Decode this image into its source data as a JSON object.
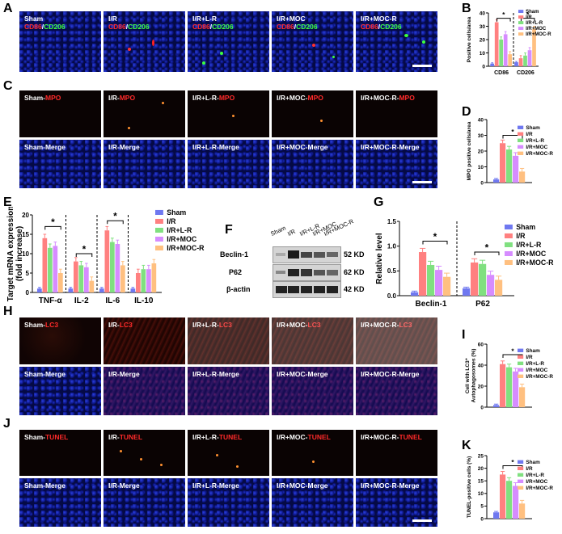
{
  "panels": {
    "A": {
      "letter": "A",
      "tiles": [
        {
          "t1": "Sham",
          "t2": "CD86",
          "t3": "/",
          "t4": "CD206"
        },
        {
          "t1": "I/R",
          "t2": "CD86",
          "t3": "/",
          "t4": "CD206"
        },
        {
          "t1": "I/R+L-R",
          "t2": "CD86",
          "t3": "/",
          "t4": "CD206"
        },
        {
          "t1": "I/R+MOC",
          "t2": "CD86",
          "t3": "/",
          "t4": "CD206"
        },
        {
          "t1": "I/R+MOC-R",
          "t2": "CD86",
          "t3": "/",
          "t4": "CD206"
        }
      ]
    },
    "C": {
      "letter": "C",
      "rows": [
        [
          {
            "t1": "Sham-",
            "t2": "MPO"
          },
          {
            "t1": "I/R-",
            "t2": "MPO"
          },
          {
            "t1": "I/R+L-R-",
            "t2": "MPO"
          },
          {
            "t1": "I/R+MOC-",
            "t2": "MPO"
          },
          {
            "t1": "I/R+MOC-R-",
            "t2": "MPO"
          }
        ],
        [
          {
            "t1": "Sham-Merge"
          },
          {
            "t1": "I/R-Merge"
          },
          {
            "t1": "I/R+L-R-Merge"
          },
          {
            "t1": "I/R+MOC-Merge"
          },
          {
            "t1": "I/R+MOC-R-Merge"
          }
        ]
      ]
    },
    "H": {
      "letter": "H",
      "rows": [
        [
          {
            "t1": "Sham-",
            "t2": "LC3"
          },
          {
            "t1": "I/R-",
            "t2": "LC3"
          },
          {
            "t1": "I/R+L-R-",
            "t2": "LC3"
          },
          {
            "t1": "I/R+MOC-",
            "t2": "LC3"
          },
          {
            "t1": "I/R+MOC-R-",
            "t2": "LC3"
          }
        ],
        [
          {
            "t1": "Sham-Merge"
          },
          {
            "t1": "I/R-Merge"
          },
          {
            "t1": "I/R+L-R-Merge"
          },
          {
            "t1": "I/R+MOC-Merge"
          },
          {
            "t1": "I/R+MOC-R-Merge"
          }
        ]
      ]
    },
    "J": {
      "letter": "J",
      "rows": [
        [
          {
            "t1": "Sham-",
            "t2": "TUNEL"
          },
          {
            "t1": "I/R-",
            "t2": "TUNEL"
          },
          {
            "t1": "I/R+L-R-",
            "t2": "TUNEL"
          },
          {
            "t1": "I/R+MOC-",
            "t2": "TUNEL"
          },
          {
            "t1": "I/R+MOC-R-",
            "t2": "TUNEL"
          }
        ],
        [
          {
            "t1": "Sham-Merge"
          },
          {
            "t1": "I/R-Merge"
          },
          {
            "t1": "I/R+L-R-Merge"
          },
          {
            "t1": "I/R+MOC-Merge"
          },
          {
            "t1": "I/R+MOC-R-Merge"
          }
        ]
      ]
    },
    "F": {
      "letter": "F",
      "lanes": [
        "Sham",
        "I/R",
        "I/R+L-R",
        "I/R+MOC",
        "I/R+MOC-R"
      ],
      "bands": [
        {
          "name": "Beclin-1",
          "kd": "52 KD"
        },
        {
          "name": "P62",
          "kd": "62 KD"
        },
        {
          "name": "β-actin",
          "kd": "42 KD"
        }
      ]
    },
    "B": {
      "letter": "B"
    },
    "D": {
      "letter": "D"
    },
    "E": {
      "letter": "E"
    },
    "G": {
      "letter": "G"
    },
    "I": {
      "letter": "I"
    },
    "K": {
      "letter": "K"
    }
  },
  "colors": {
    "Sham": "#6f78f0",
    "I/R": "#ff8080",
    "I/R+L-R": "#80e080",
    "I/R+MOC": "#d68cff",
    "I/R+MOC-R": "#ffc080"
  },
  "chart_data": [
    {
      "panel": "B",
      "type": "bar",
      "categories": [
        "CD86",
        "CD206"
      ],
      "series": [
        {
          "name": "Sham",
          "values": [
            2,
            3
          ]
        },
        {
          "name": "I/R",
          "values": [
            33,
            6
          ]
        },
        {
          "name": "I/R+L-R",
          "values": [
            20,
            8
          ]
        },
        {
          "name": "I/R+MOC",
          "values": [
            24,
            12
          ]
        },
        {
          "name": "I/R+MOC-R",
          "values": [
            9,
            28
          ]
        }
      ],
      "ylabel": "Positive cells/area",
      "ylim": [
        0,
        40
      ],
      "yticks": [
        "0",
        "10",
        "20",
        "30",
        "40"
      ],
      "sig": [
        "*",
        "*"
      ]
    },
    {
      "panel": "D",
      "type": "bar",
      "categories": [
        ""
      ],
      "series": [
        {
          "name": "Sham",
          "values": [
            2
          ]
        },
        {
          "name": "I/R",
          "values": [
            25
          ]
        },
        {
          "name": "I/R+L-R",
          "values": [
            21
          ]
        },
        {
          "name": "I/R+MOC",
          "values": [
            17
          ]
        },
        {
          "name": "I/R+MOC-R",
          "values": [
            7
          ]
        }
      ],
      "ylabel": "MPO positive cells/area",
      "ylim": [
        0,
        40
      ],
      "yticks": [
        "0",
        "10",
        "20",
        "30",
        "40"
      ],
      "sig": [
        "*"
      ]
    },
    {
      "panel": "E",
      "type": "bar",
      "categories": [
        "TNF-α",
        "IL-2",
        "IL-6",
        "IL-10"
      ],
      "series": [
        {
          "name": "Sham",
          "values": [
            1,
            1,
            1,
            1
          ]
        },
        {
          "name": "I/R",
          "values": [
            14,
            8,
            16,
            5
          ]
        },
        {
          "name": "I/R+L-R",
          "values": [
            11.5,
            7,
            13,
            6
          ]
        },
        {
          "name": "I/R+MOC",
          "values": [
            12,
            6.5,
            12.5,
            6
          ]
        },
        {
          "name": "I/R+MOC-R",
          "values": [
            5,
            3,
            7,
            7.5
          ]
        }
      ],
      "ylabel": "Target mRNA expression\n(fold increase)",
      "ylim": [
        0,
        20
      ],
      "yticks": [
        "0",
        "5",
        "10",
        "15",
        "20"
      ],
      "sig": [
        "*",
        "*",
        "*"
      ]
    },
    {
      "panel": "G",
      "type": "bar",
      "categories": [
        "Beclin-1",
        "P62"
      ],
      "series": [
        {
          "name": "Sham",
          "values": [
            0.07,
            0.15
          ]
        },
        {
          "name": "I/R",
          "values": [
            0.88,
            0.67
          ]
        },
        {
          "name": "I/R+L-R",
          "values": [
            0.62,
            0.64
          ]
        },
        {
          "name": "I/R+MOC",
          "values": [
            0.52,
            0.42
          ]
        },
        {
          "name": "I/R+MOC-R",
          "values": [
            0.38,
            0.32
          ]
        }
      ],
      "ylabel": "Relative level",
      "ylim": [
        0,
        1.5
      ],
      "yticks": [
        "0.0",
        "0.5",
        "1.0",
        "1.5"
      ],
      "sig": [
        "*",
        "*"
      ]
    },
    {
      "panel": "I",
      "type": "bar",
      "categories": [
        ""
      ],
      "series": [
        {
          "name": "Sham",
          "values": [
            2
          ]
        },
        {
          "name": "I/R",
          "values": [
            41
          ]
        },
        {
          "name": "I/R+L-R",
          "values": [
            38
          ]
        },
        {
          "name": "I/R+MOC",
          "values": [
            34
          ]
        },
        {
          "name": "I/R+MOC-R",
          "values": [
            19
          ]
        }
      ],
      "ylabel": "Cell with LC3⁺\nAutophagosomes (%)",
      "ylim": [
        0,
        60
      ],
      "yticks": [
        "0",
        "20",
        "40",
        "60"
      ],
      "sig": [
        "*"
      ]
    },
    {
      "panel": "K",
      "type": "bar",
      "categories": [
        ""
      ],
      "series": [
        {
          "name": "Sham",
          "values": [
            2.5
          ]
        },
        {
          "name": "I/R",
          "values": [
            17.5
          ]
        },
        {
          "name": "I/R+L-R",
          "values": [
            15
          ]
        },
        {
          "name": "I/R+MOC",
          "values": [
            13
          ]
        },
        {
          "name": "I/R+MOC-R",
          "values": [
            6
          ]
        }
      ],
      "ylabel": "TUNEL-positive cells (%)",
      "ylim": [
        0,
        25
      ],
      "yticks": [
        "0",
        "5",
        "10",
        "15",
        "20",
        "25"
      ],
      "sig": [
        "*"
      ]
    }
  ]
}
